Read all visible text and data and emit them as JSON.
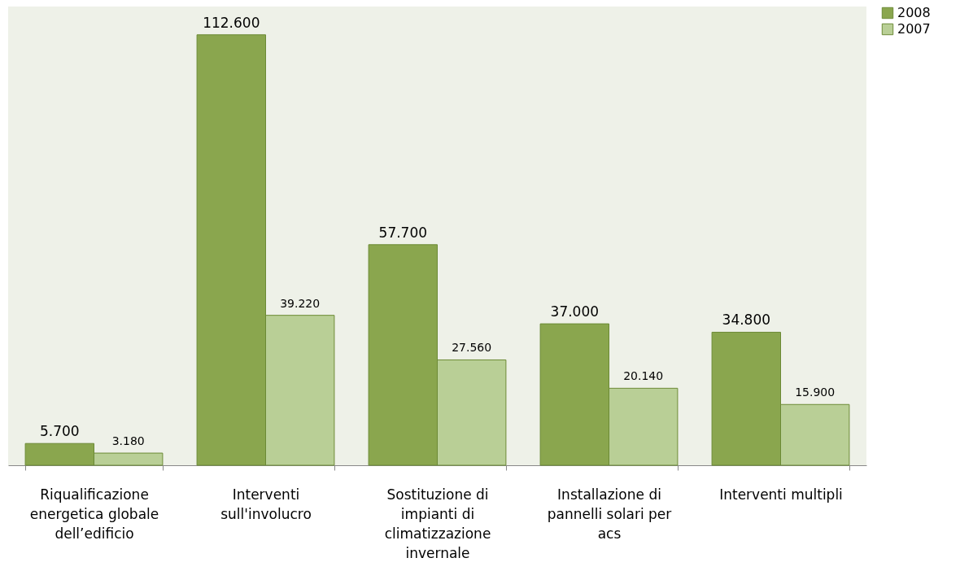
{
  "chart_data": {
    "type": "bar",
    "categories": [
      "Riqualificazione energetica globale dell’edificio",
      "Interventi sull'involucro",
      "Sostituzione di impianti di climatizzazione invernale",
      "Installazione di pannelli solari per acs",
      "Interventi multipli"
    ],
    "series": [
      {
        "name": "2008",
        "color": "#8aa64e",
        "values": [
          5700,
          112600,
          57700,
          37000,
          34800
        ],
        "value_labels": [
          "5.700",
          "112.600",
          "57.700",
          "37.000",
          "34.800"
        ]
      },
      {
        "name": "2007",
        "color": "#b9cf96",
        "values": [
          3180,
          39220,
          27560,
          20140,
          15900
        ],
        "value_labels": [
          "3.180",
          "39.220",
          "27.560",
          "20.140",
          "15.900"
        ]
      }
    ],
    "legend": "right",
    "grid": false
  }
}
